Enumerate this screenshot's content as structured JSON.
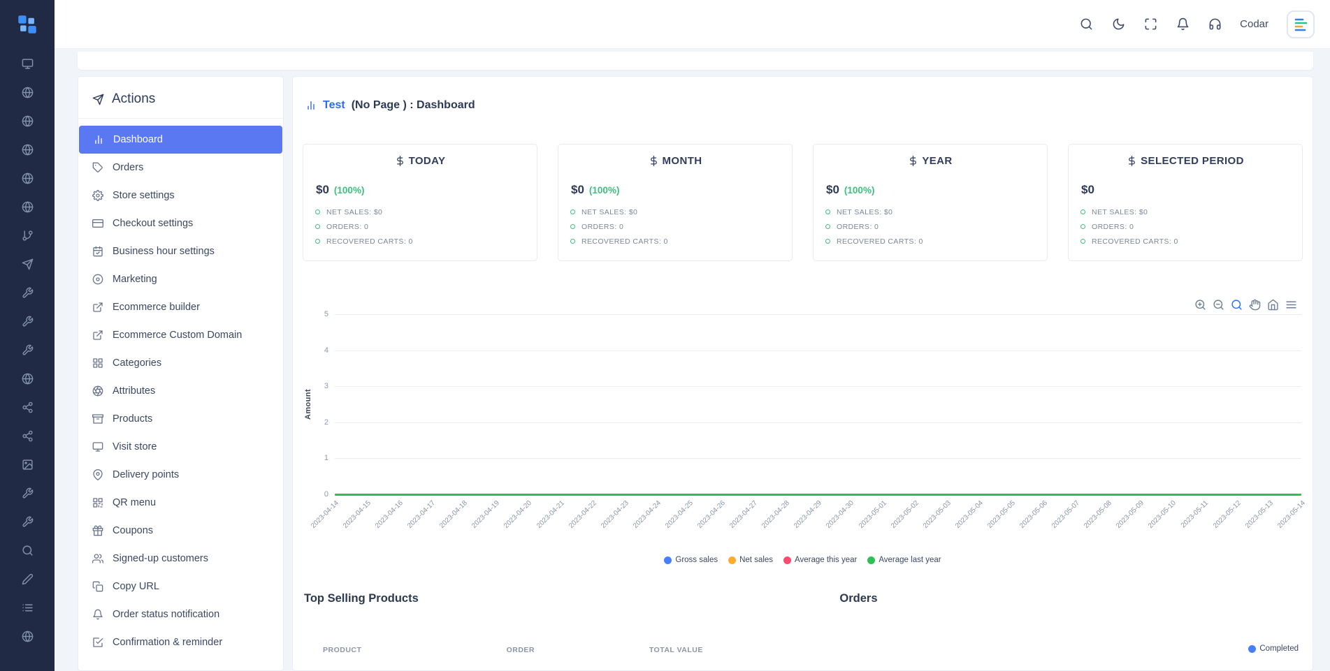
{
  "colors": {
    "sidebar_active": "#5b78f3",
    "success_green": "#3fc07e",
    "link_blue": "#2b6cf0",
    "rail_bg": "#202a44",
    "orders_completed": "#4680ff"
  },
  "rail": {
    "items": [
      {
        "icon": "monitor"
      },
      {
        "icon": "globe"
      },
      {
        "icon": "globe"
      },
      {
        "icon": "globe"
      },
      {
        "icon": "globe"
      },
      {
        "icon": "globe"
      },
      {
        "icon": "git-branch"
      },
      {
        "icon": "send"
      },
      {
        "icon": "tool"
      },
      {
        "icon": "tool"
      },
      {
        "icon": "tool"
      },
      {
        "icon": "globe"
      },
      {
        "icon": "share-2"
      },
      {
        "icon": "share-2"
      },
      {
        "icon": "image"
      },
      {
        "icon": "tool"
      },
      {
        "icon": "tool"
      },
      {
        "icon": "search"
      },
      {
        "icon": "edit"
      },
      {
        "icon": "list"
      },
      {
        "icon": "globe"
      }
    ]
  },
  "header": {
    "icons": [
      {
        "name": "search",
        "icon": "search"
      },
      {
        "name": "dark-mode",
        "icon": "moon"
      },
      {
        "name": "fullscreen",
        "icon": "maximize"
      },
      {
        "name": "notifications",
        "icon": "bell"
      },
      {
        "name": "support",
        "icon": "headphones"
      }
    ],
    "user_label": "Codar"
  },
  "sidebar": {
    "title": "Actions",
    "items": [
      {
        "icon": "bar-chart",
        "label": "Dashboard",
        "active": true
      },
      {
        "icon": "tag",
        "label": "Orders"
      },
      {
        "icon": "settings",
        "label": "Store settings"
      },
      {
        "icon": "credit-card",
        "label": "Checkout settings"
      },
      {
        "icon": "calendar",
        "label": "Business hour settings"
      },
      {
        "icon": "disc",
        "label": "Marketing"
      },
      {
        "icon": "external-link",
        "label": "Ecommerce builder"
      },
      {
        "icon": "external-link",
        "label": "Ecommerce Custom Domain"
      },
      {
        "icon": "grid",
        "label": "Categories"
      },
      {
        "icon": "aperture",
        "label": "Attributes"
      },
      {
        "icon": "archive",
        "label": "Products"
      },
      {
        "icon": "monitor",
        "label": "Visit store"
      },
      {
        "icon": "map-pin",
        "label": "Delivery points"
      },
      {
        "icon": "qr",
        "label": "QR menu"
      },
      {
        "icon": "gift",
        "label": "Coupons"
      },
      {
        "icon": "users",
        "label": "Signed-up customers"
      },
      {
        "icon": "copy",
        "label": "Copy URL"
      },
      {
        "icon": "bell",
        "label": "Order status notification"
      },
      {
        "icon": "check-square",
        "label": "Confirmation & reminder"
      }
    ]
  },
  "page": {
    "icon": "bar-chart",
    "title_link": "Test",
    "title_rest": "(No Page ) : Dashboard"
  },
  "stats": [
    {
      "title": "TODAY",
      "amount": "$0",
      "percent": "(100%)",
      "lines": [
        "NET SALES: $0",
        "ORDERS: 0",
        "RECOVERED CARTS: 0"
      ]
    },
    {
      "title": "MONTH",
      "amount": "$0",
      "percent": "(100%)",
      "lines": [
        "NET SALES: $0",
        "ORDERS: 0",
        "RECOVERED CARTS: 0"
      ]
    },
    {
      "title": "YEAR",
      "amount": "$0",
      "percent": "(100%)",
      "lines": [
        "NET SALES: $0",
        "ORDERS: 0",
        "RECOVERED CARTS: 0"
      ]
    },
    {
      "title": "SELECTED PERIOD",
      "amount": "$0",
      "percent": "",
      "lines": [
        "NET SALES: $0",
        "ORDERS: 0",
        "RECOVERED CARTS: 0"
      ]
    }
  ],
  "chart_toolbar": {
    "tools": [
      {
        "icon": "zoom-in"
      },
      {
        "icon": "zoom-out"
      },
      {
        "icon": "selection-zoom",
        "active": true
      },
      {
        "icon": "pan"
      },
      {
        "icon": "home"
      },
      {
        "icon": "menu"
      }
    ]
  },
  "chart_data": {
    "type": "line",
    "title": "",
    "xlabel": "",
    "ylabel": "Amount",
    "ylim": [
      0,
      5
    ],
    "yticks": [
      0,
      1,
      2,
      3,
      4,
      5
    ],
    "grid": true,
    "legend_position": "bottom",
    "x": [
      "2023-04-14",
      "2023-04-15",
      "2023-04-16",
      "2023-04-17",
      "2023-04-18",
      "2023-04-19",
      "2023-04-20",
      "2023-04-21",
      "2023-04-22",
      "2023-04-23",
      "2023-04-24",
      "2023-04-25",
      "2023-04-26",
      "2023-04-27",
      "2023-04-28",
      "2023-04-29",
      "2023-04-30",
      "2023-05-01",
      "2023-05-02",
      "2023-05-03",
      "2023-05-04",
      "2023-05-05",
      "2023-05-06",
      "2023-05-07",
      "2023-05-08",
      "2023-05-09",
      "2023-05-10",
      "2023-05-11",
      "2023-05-12",
      "2023-05-13",
      "2023-05-14"
    ],
    "series": [
      {
        "name": "Gross sales",
        "color": "#4680ff",
        "values": [
          0,
          0,
          0,
          0,
          0,
          0,
          0,
          0,
          0,
          0,
          0,
          0,
          0,
          0,
          0,
          0,
          0,
          0,
          0,
          0,
          0,
          0,
          0,
          0,
          0,
          0,
          0,
          0,
          0,
          0,
          0
        ]
      },
      {
        "name": "Net sales",
        "color": "#ffab2d",
        "values": [
          0,
          0,
          0,
          0,
          0,
          0,
          0,
          0,
          0,
          0,
          0,
          0,
          0,
          0,
          0,
          0,
          0,
          0,
          0,
          0,
          0,
          0,
          0,
          0,
          0,
          0,
          0,
          0,
          0,
          0,
          0
        ]
      },
      {
        "name": "Average this year",
        "color": "#fc4b6c",
        "values": [
          0,
          0,
          0,
          0,
          0,
          0,
          0,
          0,
          0,
          0,
          0,
          0,
          0,
          0,
          0,
          0,
          0,
          0,
          0,
          0,
          0,
          0,
          0,
          0,
          0,
          0,
          0,
          0,
          0,
          0,
          0
        ]
      },
      {
        "name": "Average last year",
        "color": "#2bc155",
        "values": [
          0,
          0,
          0,
          0,
          0,
          0,
          0,
          0,
          0,
          0,
          0,
          0,
          0,
          0,
          0,
          0,
          0,
          0,
          0,
          0,
          0,
          0,
          0,
          0,
          0,
          0,
          0,
          0,
          0,
          0,
          0
        ]
      }
    ]
  },
  "sections": {
    "top_selling": {
      "title": "Top Selling Products",
      "columns": [
        "PRODUCT",
        "ORDER",
        "TOTAL VALUE"
      ]
    },
    "orders": {
      "title": "Orders",
      "legend": [
        {
          "label": "Completed",
          "color": "#4680ff"
        }
      ]
    }
  }
}
